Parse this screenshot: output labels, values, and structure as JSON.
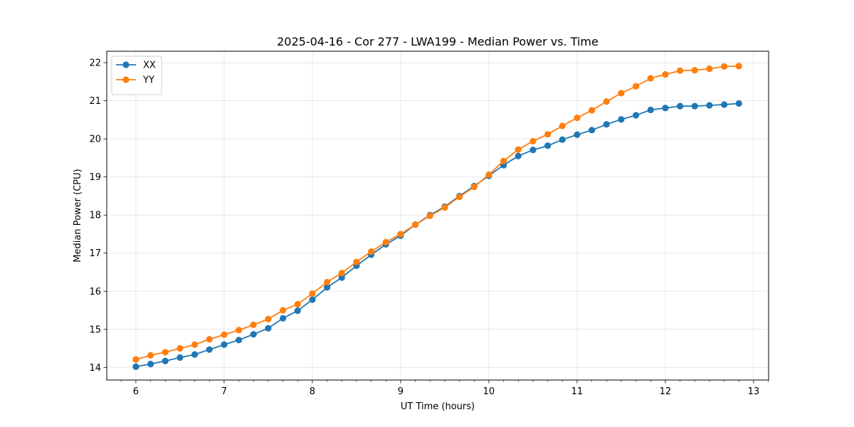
{
  "chart_data": {
    "type": "line",
    "title": "2025-04-16 - Cor 277 - LWA199 - Median Power vs. Time",
    "xlabel": "UT Time (hours)",
    "ylabel": "Median Power (CPU)",
    "xlim": [
      5.67,
      13.17
    ],
    "ylim": [
      13.67,
      22.3
    ],
    "xticks": [
      6,
      7,
      8,
      9,
      10,
      11,
      12,
      13
    ],
    "yticks": [
      14,
      15,
      16,
      17,
      18,
      19,
      20,
      21,
      22
    ],
    "grid": true,
    "legend_position": "top-left",
    "x": [
      6.0,
      6.167,
      6.333,
      6.5,
      6.667,
      6.833,
      7.0,
      7.167,
      7.333,
      7.5,
      7.667,
      7.833,
      8.0,
      8.167,
      8.333,
      8.5,
      8.667,
      8.833,
      9.0,
      9.167,
      9.333,
      9.5,
      9.667,
      9.833,
      10.0,
      10.167,
      10.333,
      10.5,
      10.667,
      10.833,
      11.0,
      11.167,
      11.333,
      11.5,
      11.667,
      11.833,
      12.0,
      12.167,
      12.333,
      12.5,
      12.667,
      12.833
    ],
    "series": [
      {
        "name": "XX",
        "color": "#1f77b4",
        "values": [
          14.02,
          14.09,
          14.17,
          14.26,
          14.34,
          14.47,
          14.6,
          14.72,
          14.87,
          15.03,
          15.29,
          15.49,
          15.78,
          16.1,
          16.36,
          16.67,
          16.96,
          17.23,
          17.46,
          17.75,
          18.0,
          18.22,
          18.5,
          18.76,
          19.03,
          19.31,
          19.55,
          19.71,
          19.82,
          19.98,
          20.11,
          20.23,
          20.38,
          20.51,
          20.62,
          20.76,
          20.81,
          20.86,
          20.86,
          20.88,
          20.9,
          20.93
        ]
      },
      {
        "name": "YY",
        "color": "#ff7f0e",
        "values": [
          14.21,
          14.32,
          14.4,
          14.5,
          14.6,
          14.74,
          14.86,
          14.98,
          15.12,
          15.27,
          15.5,
          15.66,
          15.94,
          16.24,
          16.48,
          16.77,
          17.04,
          17.29,
          17.5,
          17.75,
          17.98,
          18.2,
          18.48,
          18.74,
          19.06,
          19.42,
          19.72,
          19.94,
          20.12,
          20.34,
          20.55,
          20.75,
          20.98,
          21.2,
          21.38,
          21.59,
          21.69,
          21.79,
          21.8,
          21.84,
          21.9,
          21.91
        ]
      }
    ]
  }
}
